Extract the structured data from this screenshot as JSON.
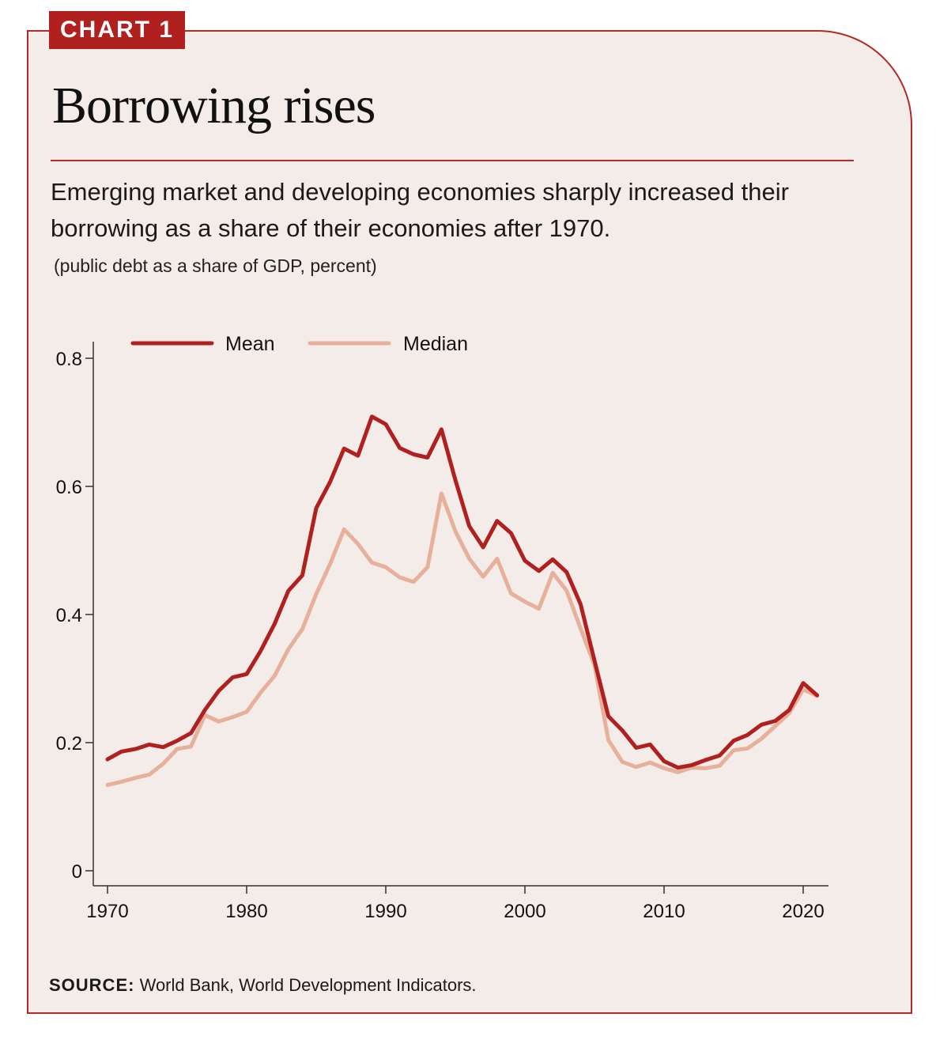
{
  "header": {
    "tag": "CHART 1",
    "title": "Borrowing rises",
    "subtitle": "Emerging market and developing economies sharply increased their borrowing as a share of their economies after 1970.",
    "units": "(public debt as a share of GDP, percent)"
  },
  "source": {
    "label": "SOURCE:",
    "text": "World Bank, World Development Indicators."
  },
  "colors": {
    "mean": "#b0201f",
    "median": "#e6b09b",
    "axis": "#333333"
  },
  "chart_data": {
    "type": "line",
    "title": "Borrowing rises",
    "xlabel": "",
    "ylabel": "",
    "xlim": [
      1970,
      2021
    ],
    "ylim": [
      0,
      0.8
    ],
    "xticks": [
      1970,
      1980,
      1990,
      2000,
      2010,
      2020
    ],
    "yticks": [
      0,
      0.2,
      0.4,
      0.6,
      0.8
    ],
    "ytick_labels": [
      "0",
      "0.2",
      "0.4",
      "0.6",
      "0.8"
    ],
    "legend_position": "top-left",
    "x": [
      1970,
      1971,
      1972,
      1973,
      1974,
      1975,
      1976,
      1977,
      1978,
      1979,
      1980,
      1981,
      1982,
      1983,
      1984,
      1985,
      1986,
      1987,
      1988,
      1989,
      1990,
      1991,
      1992,
      1993,
      1994,
      1995,
      1996,
      1997,
      1998,
      1999,
      2000,
      2001,
      2002,
      2003,
      2004,
      2005,
      2006,
      2007,
      2008,
      2009,
      2010,
      2011,
      2012,
      2013,
      2014,
      2015,
      2016,
      2017,
      2018,
      2019,
      2020,
      2021
    ],
    "series": [
      {
        "name": "Mean",
        "values": [
          0.174,
          0.186,
          0.19,
          0.197,
          0.193,
          0.203,
          0.215,
          0.251,
          0.281,
          0.302,
          0.307,
          0.343,
          0.385,
          0.437,
          0.461,
          0.566,
          0.607,
          0.659,
          0.648,
          0.709,
          0.697,
          0.66,
          0.65,
          0.645,
          0.689,
          0.61,
          0.538,
          0.505,
          0.546,
          0.527,
          0.484,
          0.468,
          0.486,
          0.466,
          0.416,
          0.328,
          0.241,
          0.219,
          0.192,
          0.197,
          0.171,
          0.161,
          0.165,
          0.173,
          0.18,
          0.203,
          0.212,
          0.228,
          0.234,
          0.251,
          0.293,
          0.274
        ]
      },
      {
        "name": "Median",
        "values": [
          0.134,
          0.139,
          0.145,
          0.15,
          0.167,
          0.19,
          0.194,
          0.243,
          0.233,
          0.24,
          0.248,
          0.278,
          0.304,
          0.346,
          0.377,
          0.432,
          0.479,
          0.533,
          0.51,
          0.481,
          0.474,
          0.458,
          0.451,
          0.474,
          0.589,
          0.53,
          0.487,
          0.459,
          0.487,
          0.433,
          0.42,
          0.409,
          0.465,
          0.437,
          0.378,
          0.321,
          0.204,
          0.17,
          0.162,
          0.169,
          0.16,
          0.154,
          0.161,
          0.16,
          0.164,
          0.188,
          0.191,
          0.206,
          0.226,
          0.246,
          0.283,
          0.273
        ]
      }
    ]
  }
}
